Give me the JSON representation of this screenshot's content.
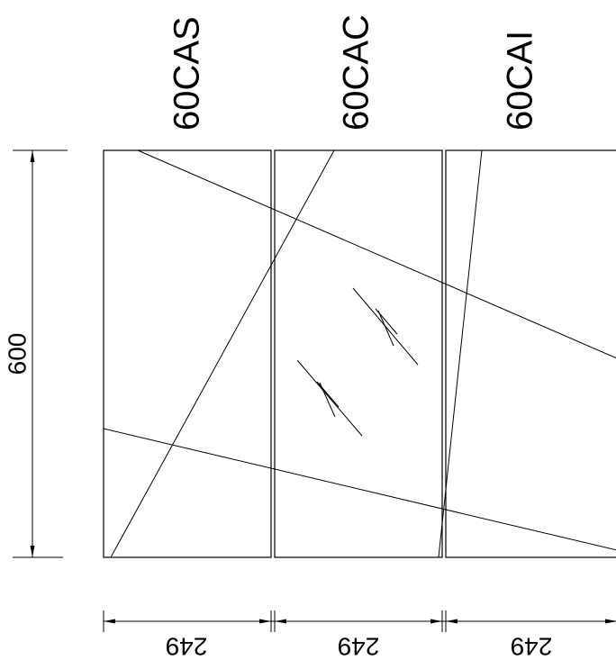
{
  "labels": {
    "panel_1": "60CAS",
    "panel_2": "60CAC",
    "panel_3": "60CAI"
  },
  "dimensions": {
    "height": "600",
    "width_1": "249",
    "width_2": "249",
    "width_3": "249"
  }
}
